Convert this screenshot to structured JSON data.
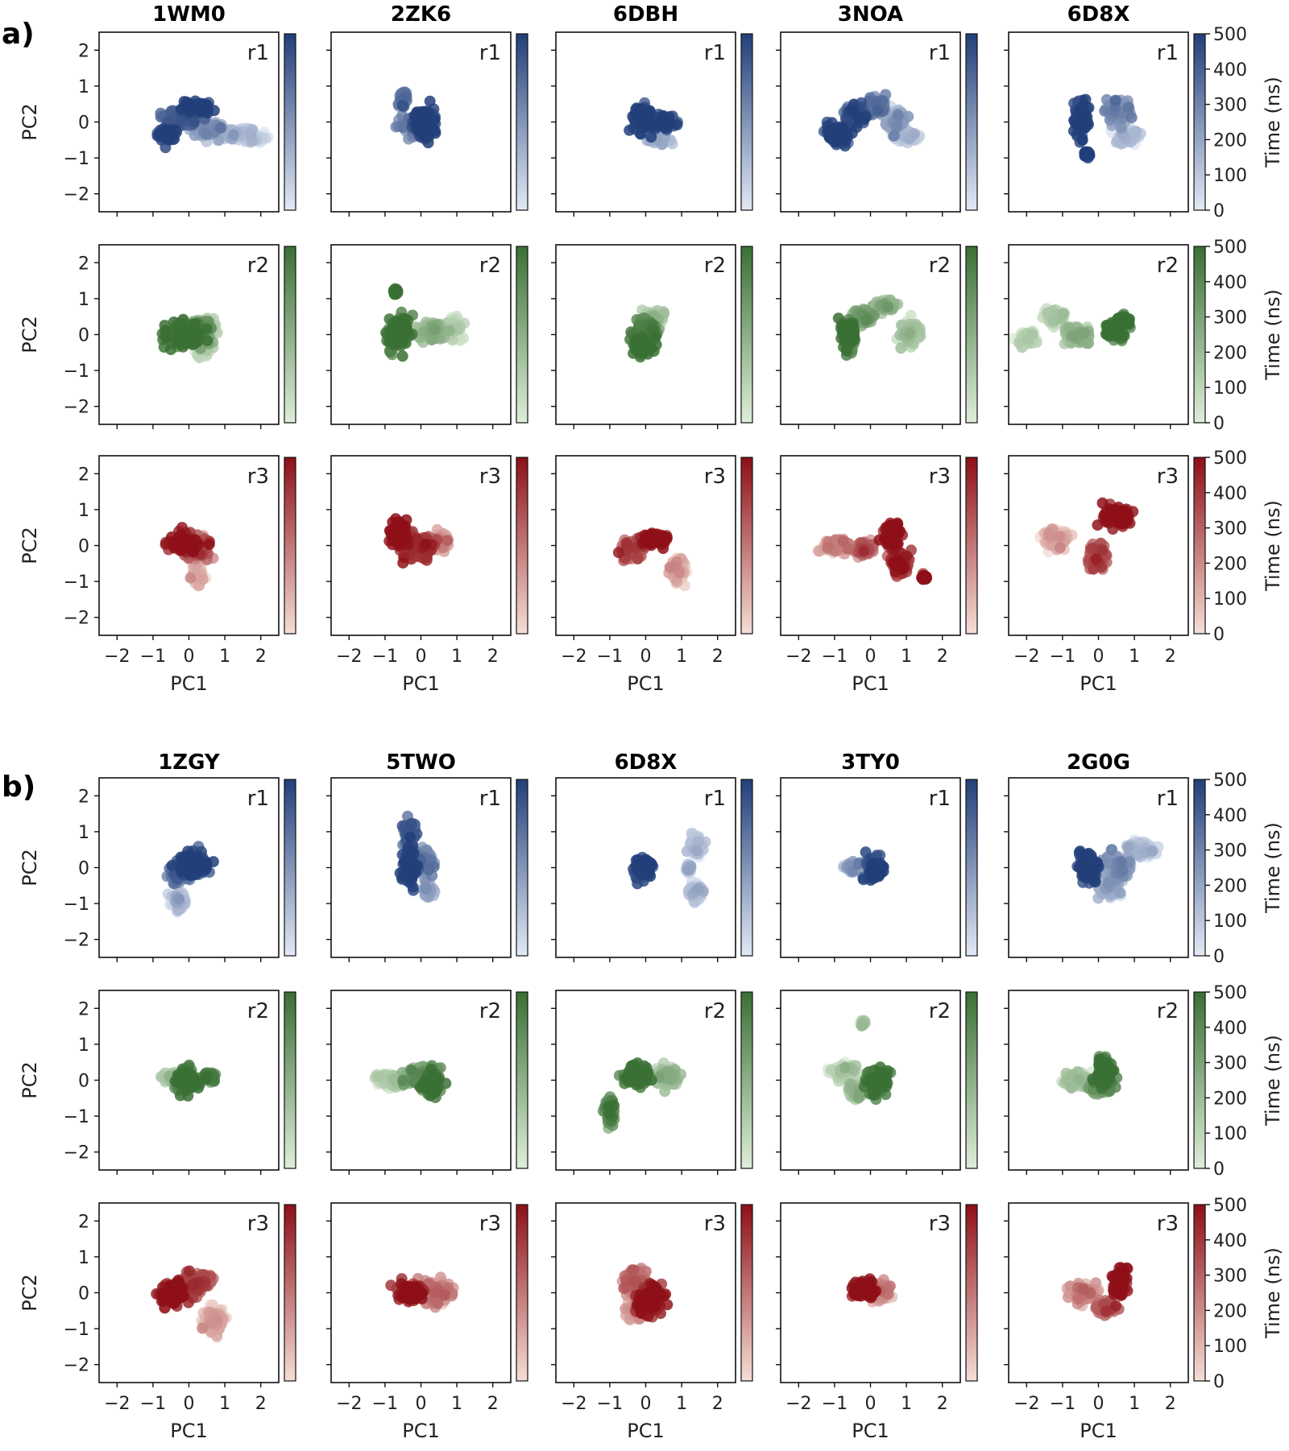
{
  "figure": {
    "panel_labels": [
      "a)",
      "b)"
    ],
    "colorbar_label": "Time (ns)",
    "colorbar_ticks": [
      "0",
      "100",
      "200",
      "300",
      "400",
      "500"
    ]
  },
  "chart_data": [
    {
      "panel": "a)",
      "type": "scatter",
      "columns": [
        "1WM0",
        "2ZK6",
        "6DBH",
        "3NOA",
        "6D8X"
      ],
      "rows": [
        "r1",
        "r2",
        "r3"
      ],
      "row_colors": {
        "r1": "#223f7a",
        "r2": "#3a7034",
        "r3": "#8e0f17"
      },
      "xlabel": "PC1",
      "ylabel": "PC2",
      "xlim": [
        -2.5,
        2.5
      ],
      "ylim": [
        -2.5,
        2.5
      ],
      "xticks": [
        "−2",
        "−1",
        "0",
        "1",
        "2"
      ],
      "yticks": [
        "−2",
        "−1",
        "0",
        "1",
        "2"
      ],
      "colorbar": {
        "label": "Time (ns)",
        "range": [
          0,
          500
        ]
      },
      "clusters": {
        "1WM0": {
          "r1": [
            [
              -0.6,
              -0.35,
              0.25,
              0.15,
              0.9
            ],
            [
              -0.2,
              0.1,
              0.45,
              0.2,
              0.7
            ],
            [
              0.2,
              0.4,
              0.3,
              0.12,
              0.95
            ],
            [
              0.6,
              -0.2,
              0.35,
              0.15,
              0.35
            ],
            [
              1.3,
              -0.35,
              0.5,
              0.12,
              0.15
            ],
            [
              1.8,
              -0.45,
              0.3,
              0.08,
              0.05
            ]
          ],
          "r2": [
            [
              -0.1,
              0.0,
              0.4,
              0.25,
              0.9
            ],
            [
              0.2,
              0.1,
              0.3,
              0.25,
              0.6
            ],
            [
              0.5,
              0.2,
              0.2,
              0.2,
              0.25
            ],
            [
              0.4,
              -0.4,
              0.15,
              0.2,
              0.1
            ]
          ],
          "r3": [
            [
              -0.1,
              0.05,
              0.35,
              0.2,
              0.9
            ],
            [
              0.2,
              -0.1,
              0.3,
              0.2,
              0.55
            ],
            [
              0.25,
              -0.8,
              0.12,
              0.2,
              0.1
            ]
          ]
        },
        "2ZK6": {
          "r1": [
            [
              -0.2,
              -0.1,
              0.3,
              0.2,
              0.5
            ],
            [
              0.1,
              0.0,
              0.3,
              0.3,
              0.95
            ],
            [
              -0.5,
              0.6,
              0.08,
              0.15,
              0.6
            ]
          ],
          "r2": [
            [
              -0.6,
              0.0,
              0.25,
              0.35,
              0.9
            ],
            [
              -0.7,
              1.2,
              0.05,
              0.05,
              0.85
            ],
            [
              0.3,
              0.1,
              0.3,
              0.2,
              0.35
            ],
            [
              0.9,
              0.2,
              0.2,
              0.2,
              0.12
            ]
          ],
          "r3": [
            [
              -0.6,
              0.3,
              0.2,
              0.25,
              0.95
            ],
            [
              -0.1,
              -0.1,
              0.35,
              0.25,
              0.7
            ],
            [
              0.5,
              0.1,
              0.2,
              0.2,
              0.25
            ]
          ]
        },
        "6DBH": {
          "r1": [
            [
              -0.1,
              0.1,
              0.2,
              0.3,
              0.95
            ],
            [
              0.5,
              0.0,
              0.25,
              0.15,
              0.85
            ],
            [
              0.4,
              -0.5,
              0.2,
              0.1,
              0.2
            ]
          ],
          "r2": [
            [
              0.0,
              0.1,
              0.25,
              0.3,
              0.7
            ],
            [
              -0.1,
              -0.3,
              0.2,
              0.2,
              0.95
            ],
            [
              0.2,
              0.5,
              0.2,
              0.15,
              0.2
            ]
          ],
          "r3": [
            [
              0.2,
              0.2,
              0.25,
              0.15,
              0.95
            ],
            [
              -0.4,
              -0.1,
              0.25,
              0.2,
              0.6
            ],
            [
              0.9,
              -0.7,
              0.15,
              0.3,
              0.15
            ]
          ]
        },
        "3NOA": {
          "r1": [
            [
              -0.9,
              -0.35,
              0.25,
              0.2,
              0.95
            ],
            [
              -0.4,
              0.2,
              0.3,
              0.2,
              0.8
            ],
            [
              0.2,
              0.45,
              0.2,
              0.2,
              0.55
            ],
            [
              0.7,
              0.0,
              0.2,
              0.2,
              0.35
            ],
            [
              1.0,
              -0.4,
              0.2,
              0.1,
              0.12
            ]
          ],
          "r2": [
            [
              -0.6,
              0.0,
              0.15,
              0.35,
              0.95
            ],
            [
              -0.2,
              0.5,
              0.2,
              0.15,
              0.55
            ],
            [
              0.4,
              0.8,
              0.2,
              0.1,
              0.35
            ],
            [
              1.1,
              0.0,
              0.2,
              0.3,
              0.2
            ]
          ],
          "r3": [
            [
              -0.9,
              0.0,
              0.3,
              0.15,
              0.3
            ],
            [
              -0.2,
              -0.1,
              0.25,
              0.15,
              0.5
            ],
            [
              0.6,
              0.3,
              0.2,
              0.3,
              0.9
            ],
            [
              0.8,
              -0.5,
              0.2,
              0.25,
              0.8
            ],
            [
              1.5,
              -0.9,
              0.05,
              0.05,
              0.9
            ]
          ]
        },
        "6D8X": {
          "r1": [
            [
              -0.5,
              0.1,
              0.15,
              0.4,
              0.95
            ],
            [
              0.5,
              0.3,
              0.25,
              0.25,
              0.45
            ],
            [
              0.8,
              -0.4,
              0.25,
              0.15,
              0.12
            ],
            [
              -0.3,
              -0.9,
              0.05,
              0.05,
              0.9
            ]
          ],
          "r2": [
            [
              -2.0,
              -0.1,
              0.2,
              0.15,
              0.1
            ],
            [
              -1.2,
              0.5,
              0.2,
              0.2,
              0.15
            ],
            [
              -0.6,
              0.0,
              0.3,
              0.2,
              0.35
            ],
            [
              0.5,
              0.1,
              0.25,
              0.2,
              0.95
            ],
            [
              0.7,
              0.4,
              0.15,
              0.1,
              0.9
            ]
          ],
          "r3": [
            [
              -1.2,
              0.2,
              0.25,
              0.2,
              0.15
            ],
            [
              0.5,
              0.8,
              0.3,
              0.2,
              0.95
            ],
            [
              0.0,
              -0.3,
              0.2,
              0.3,
              0.6
            ]
          ]
        }
      }
    },
    {
      "panel": "b)",
      "type": "scatter",
      "columns": [
        "1ZGY",
        "5TWO",
        "6D8X",
        "3TY0",
        "2G0G"
      ],
      "rows": [
        "r1",
        "r2",
        "r3"
      ],
      "row_colors": {
        "r1": "#223f7a",
        "r2": "#3a7034",
        "r3": "#8e0f17"
      },
      "xlabel": "PC1",
      "ylabel": "PC2",
      "xlim": [
        -2.5,
        2.5
      ],
      "ylim": [
        -2.5,
        2.5
      ],
      "xticks": [
        "−2",
        "−1",
        "0",
        "1",
        "2"
      ],
      "yticks": [
        "−2",
        "−1",
        "0",
        "1",
        "2"
      ],
      "colorbar": {
        "label": "Time (ns)",
        "range": [
          0,
          500
        ]
      },
      "clusters": {
        "1ZGY": {
          "r1": [
            [
              0.1,
              0.1,
              0.35,
              0.25,
              0.95
            ],
            [
              -0.3,
              -0.2,
              0.25,
              0.2,
              0.6
            ],
            [
              -0.3,
              -0.9,
              0.15,
              0.2,
              0.15
            ]
          ],
          "r2": [
            [
              -0.1,
              0.0,
              0.25,
              0.25,
              0.9
            ],
            [
              -0.5,
              0.1,
              0.2,
              0.12,
              0.2
            ],
            [
              0.6,
              0.1,
              0.1,
              0.1,
              0.8
            ]
          ],
          "r3": [
            [
              -0.4,
              0.0,
              0.3,
              0.25,
              0.95
            ],
            [
              0.3,
              0.3,
              0.3,
              0.2,
              0.6
            ],
            [
              0.7,
              -0.8,
              0.2,
              0.25,
              0.15
            ]
          ]
        },
        "5TWO": {
          "r1": [
            [
              -0.3,
              0.0,
              0.15,
              0.4,
              0.95
            ],
            [
              0.1,
              0.2,
              0.2,
              0.25,
              0.5
            ],
            [
              -0.3,
              0.9,
              0.12,
              0.3,
              0.7
            ],
            [
              0.2,
              -0.6,
              0.1,
              0.15,
              0.3
            ]
          ],
          "r2": [
            [
              -0.8,
              0.0,
              0.3,
              0.15,
              0.15
            ],
            [
              0.0,
              0.1,
              0.35,
              0.25,
              0.6
            ],
            [
              0.3,
              -0.1,
              0.2,
              0.25,
              0.9
            ]
          ],
          "r3": [
            [
              -0.3,
              0.0,
              0.3,
              0.2,
              0.9
            ],
            [
              0.4,
              0.0,
              0.3,
              0.25,
              0.35
            ]
          ]
        },
        "6D8X": {
          "r1": [
            [
              -0.1,
              0.0,
              0.2,
              0.2,
              0.95
            ],
            [
              1.4,
              0.6,
              0.15,
              0.2,
              0.12
            ],
            [
              1.4,
              -0.7,
              0.15,
              0.2,
              0.12
            ],
            [
              1.2,
              0.0,
              0.05,
              0.1,
              0.12
            ]
          ],
          "r2": [
            [
              -0.3,
              0.1,
              0.25,
              0.25,
              0.95
            ],
            [
              0.6,
              0.1,
              0.3,
              0.2,
              0.3
            ],
            [
              -1.0,
              -0.9,
              0.1,
              0.3,
              0.75
            ]
          ],
          "r3": [
            [
              -0.3,
              0.3,
              0.25,
              0.3,
              0.5
            ],
            [
              0.1,
              -0.2,
              0.3,
              0.3,
              0.9
            ],
            [
              -0.3,
              -0.5,
              0.2,
              0.2,
              0.2
            ]
          ]
        },
        "3TY0": {
          "r1": [
            [
              0.1,
              0.0,
              0.2,
              0.25,
              0.95
            ],
            [
              -0.5,
              0.0,
              0.2,
              0.1,
              0.3
            ]
          ],
          "r2": [
            [
              -0.7,
              0.2,
              0.3,
              0.2,
              0.15
            ],
            [
              0.2,
              0.0,
              0.25,
              0.25,
              0.9
            ],
            [
              -0.4,
              -0.3,
              0.2,
              0.2,
              0.3
            ],
            [
              -0.2,
              1.6,
              0.05,
              0.05,
              0.15
            ]
          ],
          "r3": [
            [
              -0.2,
              0.1,
              0.25,
              0.2,
              0.95
            ],
            [
              0.3,
              0.0,
              0.2,
              0.2,
              0.3
            ]
          ]
        },
        "2G0G": {
          "r1": [
            [
              -0.3,
              0.0,
              0.2,
              0.3,
              0.95
            ],
            [
              0.5,
              0.0,
              0.3,
              0.3,
              0.4
            ],
            [
              1.2,
              0.5,
              0.3,
              0.15,
              0.15
            ],
            [
              0.3,
              -0.6,
              0.2,
              0.2,
              0.2
            ]
          ],
          "r2": [
            [
              0.2,
              0.2,
              0.2,
              0.35,
              0.9
            ],
            [
              -0.6,
              0.0,
              0.3,
              0.15,
              0.2
            ],
            [
              0.0,
              -0.2,
              0.2,
              0.15,
              0.5
            ]
          ],
          "r3": [
            [
              0.6,
              0.3,
              0.15,
              0.3,
              0.95
            ],
            [
              -0.4,
              0.0,
              0.3,
              0.2,
              0.3
            ],
            [
              0.2,
              -0.4,
              0.2,
              0.15,
              0.5
            ]
          ]
        }
      }
    }
  ]
}
